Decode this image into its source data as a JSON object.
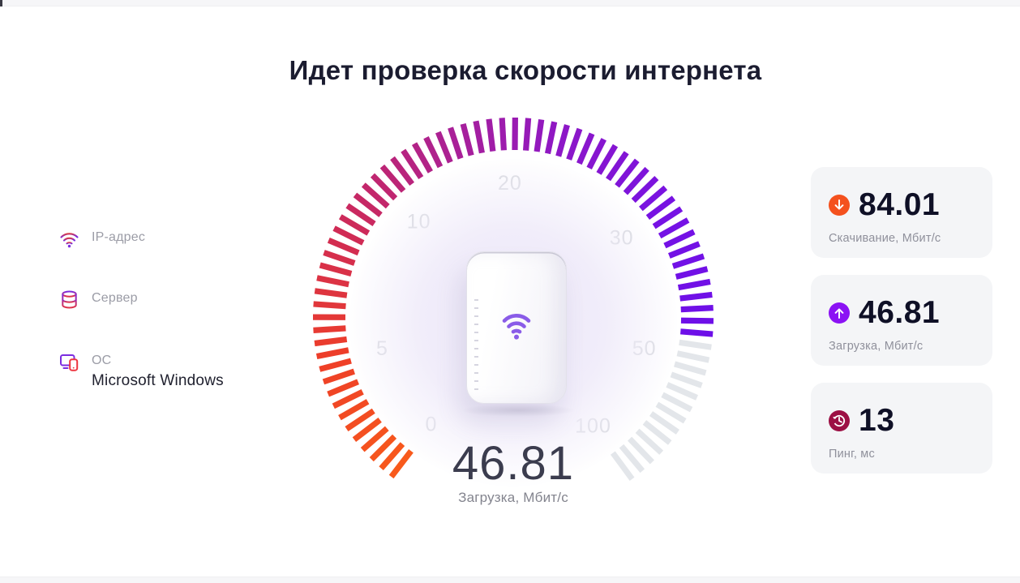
{
  "page": {
    "title": "Идет проверка скорости интернета"
  },
  "sidebar": {
    "items": [
      {
        "icon": "wifi-icon",
        "label": "IP-адрес",
        "value": ""
      },
      {
        "icon": "server-icon",
        "label": "Сервер",
        "value": ""
      },
      {
        "icon": "os-icon",
        "label": "ОС",
        "value": "Microsoft Windows"
      }
    ]
  },
  "gauge_result": {
    "value": "46.81",
    "label": "Загрузка, Мбит/с"
  },
  "cards": [
    {
      "icon": "download-arrow-icon",
      "icon_bg": "#f4511e",
      "value": "84.01",
      "label": "Скачивание, Мбит/с"
    },
    {
      "icon": "upload-arrow-icon",
      "icon_bg": "#8b12f4",
      "value": "46.81",
      "label": "Загрузка, Мбит/с"
    },
    {
      "icon": "ping-clock-icon",
      "icon_bg": "#9c1044",
      "value": "13",
      "label": "Пинг, мс"
    }
  ],
  "chart_data": {
    "type": "gauge",
    "title": "Идет проверка скорости интернета",
    "value": 46.81,
    "unit": "Мбит/с",
    "value_label": "Загрузка, Мбит/с",
    "scale_points": [
      {
        "label": "0",
        "angle": 127.5
      },
      {
        "label": "5",
        "angle": 166.7
      },
      {
        "label": "10",
        "angle": 225.5
      },
      {
        "label": "20",
        "angle": 268.6
      },
      {
        "label": "30",
        "angle": 323.6
      },
      {
        "label": "50",
        "angle": 373.2
      },
      {
        "label": "100",
        "angle": 413.6
      }
    ],
    "start_angle": 127.5,
    "end_angle": 413.6,
    "value_angle": 365.3,
    "tick_count": 77,
    "tick_outer_radius": 247,
    "tick_inner_radius": 207,
    "label_radius": 166,
    "active_color_stops": [
      "#f85a1c",
      "#ee3f28",
      "#d02b55",
      "#ad2190",
      "#8d17c8",
      "#7612e4",
      "#6d0fe8"
    ],
    "inactive_color": "#e3e6ea",
    "scale_label_color": "#d7d9de"
  }
}
